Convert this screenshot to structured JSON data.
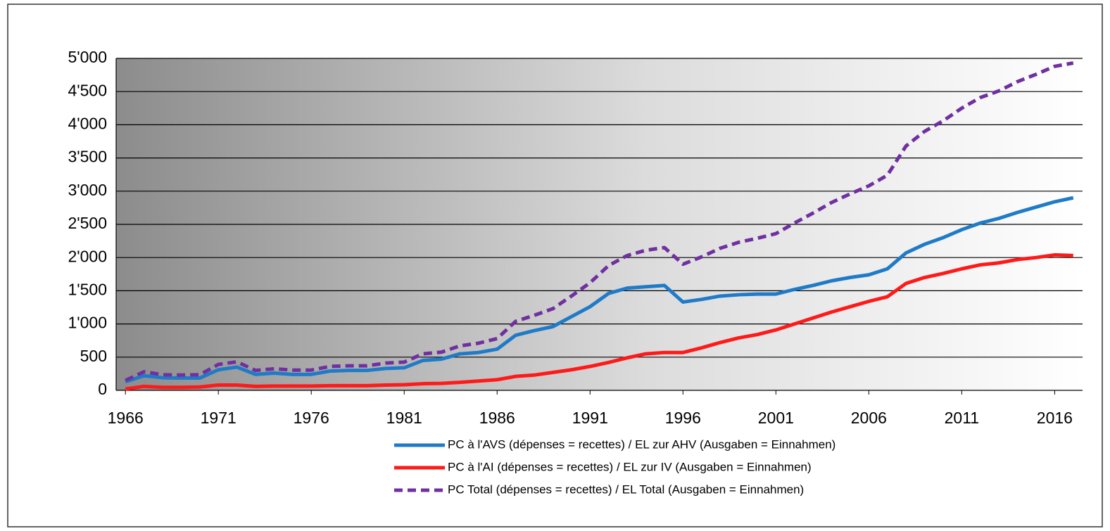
{
  "chart_data": {
    "type": "line",
    "x": [
      1966,
      1967,
      1968,
      1969,
      1970,
      1971,
      1972,
      1973,
      1974,
      1975,
      1976,
      1977,
      1978,
      1979,
      1980,
      1981,
      1982,
      1983,
      1984,
      1985,
      1986,
      1987,
      1988,
      1989,
      1990,
      1991,
      1992,
      1993,
      1994,
      1995,
      1996,
      1997,
      1998,
      1999,
      2000,
      2001,
      2002,
      2003,
      2004,
      2005,
      2006,
      2007,
      2008,
      2009,
      2010,
      2011,
      2012,
      2013,
      2014,
      2015,
      2016,
      2017
    ],
    "series": [
      {
        "name": "PC à l'AVS (dépenses = recettes) / EL zur AHV (Ausgaben = Einnahmen)",
        "color": "#1f7bc8",
        "dashed": false,
        "values": [
          130,
          220,
          190,
          185,
          185,
          310,
          350,
          240,
          260,
          240,
          240,
          290,
          300,
          300,
          330,
          340,
          450,
          470,
          550,
          570,
          620,
          830,
          900,
          960,
          1110,
          1260,
          1460,
          1540,
          1560,
          1580,
          1330,
          1370,
          1420,
          1440,
          1450,
          1450,
          1520,
          1580,
          1650,
          1700,
          1740,
          1830,
          2070,
          2200,
          2300,
          2420,
          2520,
          2590,
          2680,
          2760,
          2840,
          2900
        ]
      },
      {
        "name": "PC à l'AI (dépenses = recettes)  / EL zur IV (Ausgaben = Einnahmen)",
        "color": "#ff1a1a",
        "dashed": false,
        "values": [
          20,
          60,
          45,
          45,
          50,
          80,
          80,
          60,
          65,
          65,
          65,
          70,
          70,
          70,
          80,
          85,
          100,
          105,
          120,
          140,
          160,
          210,
          230,
          270,
          310,
          360,
          420,
          490,
          550,
          570,
          570,
          640,
          720,
          790,
          840,
          910,
          1000,
          1090,
          1180,
          1260,
          1340,
          1410,
          1610,
          1700,
          1760,
          1830,
          1890,
          1920,
          1970,
          2000,
          2040,
          2030
        ]
      },
      {
        "name": "PC Total (dépenses = recettes)  / EL Total (Ausgaben = Einnahmen)",
        "color": "#7030a0",
        "dashed": true,
        "values": [
          150,
          280,
          235,
          230,
          235,
          390,
          430,
          300,
          325,
          305,
          305,
          360,
          370,
          370,
          410,
          425,
          550,
          575,
          670,
          710,
          780,
          1040,
          1130,
          1230,
          1420,
          1620,
          1880,
          2030,
          2110,
          2150,
          1900,
          2010,
          2140,
          2230,
          2290,
          2360,
          2520,
          2670,
          2830,
          2960,
          3080,
          3240,
          3680,
          3900,
          4060,
          4250,
          4410,
          4510,
          4650,
          4760,
          4880,
          4930
        ]
      }
    ],
    "xlim": [
      1965.5,
      2017.5
    ],
    "xticks": [
      1966,
      1971,
      1976,
      1981,
      1986,
      1991,
      1996,
      2001,
      2006,
      2011,
      2016
    ],
    "ylim": [
      0,
      5000
    ],
    "yticks": [
      0,
      500,
      {
        "value": 1000,
        "label": "1'000"
      },
      {
        "value": 1500,
        "label": "1'500"
      },
      {
        "value": 2000,
        "label": "2'000"
      },
      {
        "value": 2500,
        "label": "2'500"
      },
      {
        "value": 3000,
        "label": "3'000"
      },
      {
        "value": 3500,
        "label": "3'500"
      },
      {
        "value": 4000,
        "label": "4'000"
      },
      {
        "value": 4500,
        "label": "4'500"
      },
      {
        "value": 5000,
        "label": "5'000"
      }
    ],
    "grid": true
  }
}
